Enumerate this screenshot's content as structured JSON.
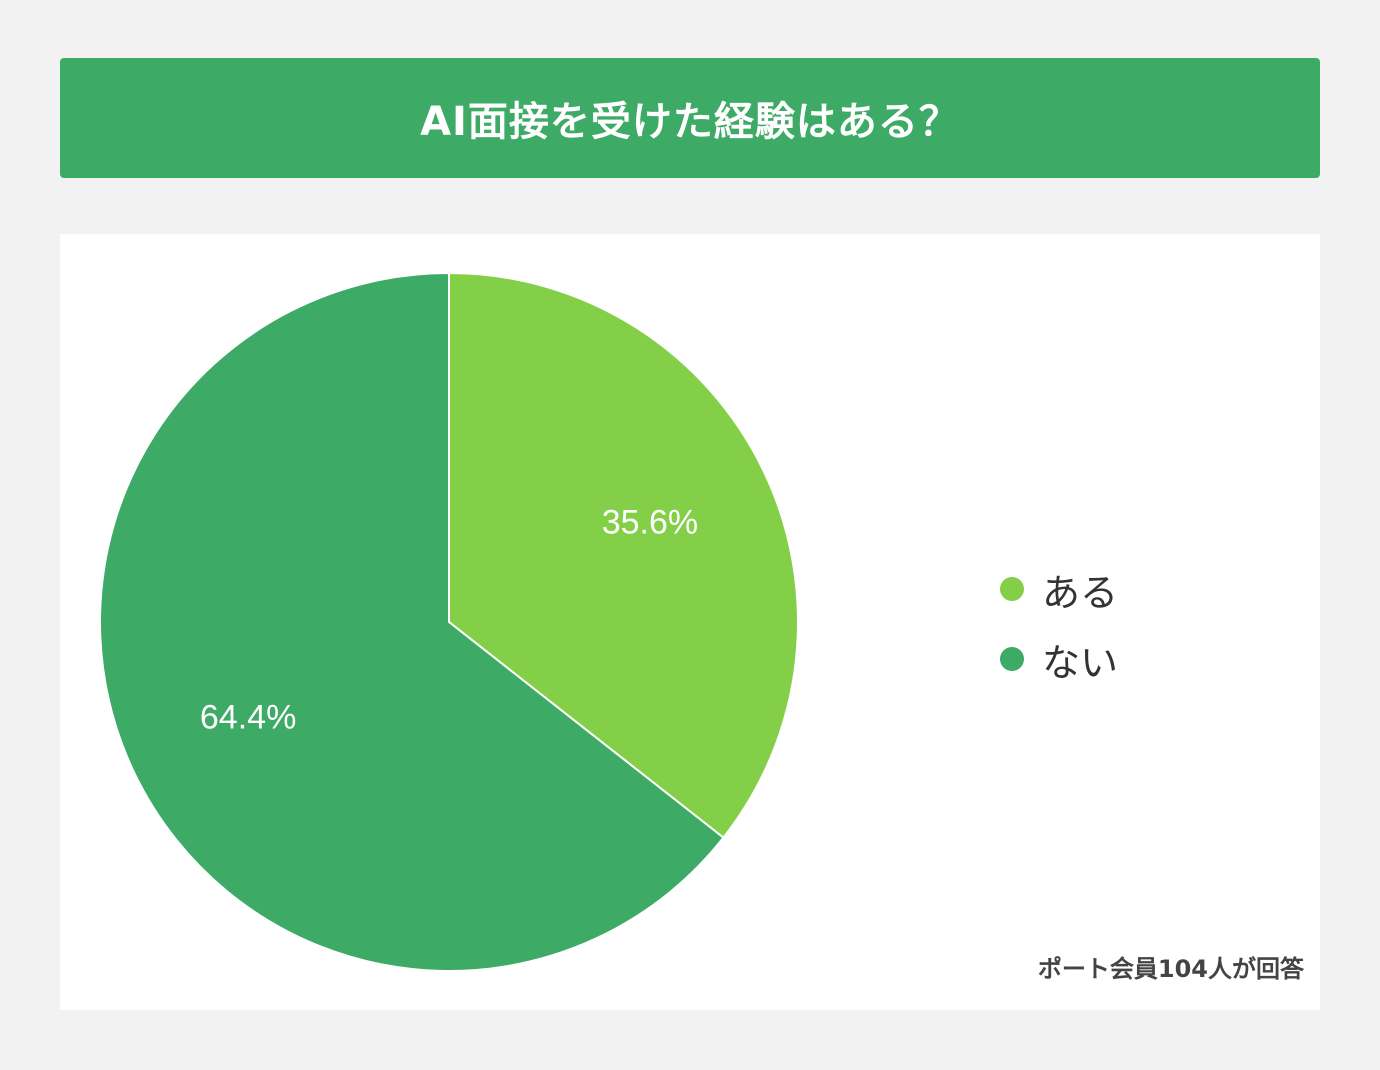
{
  "title": "AI面接を受けた経験はある？",
  "footnote": "ポート会員104人が回答",
  "chart_data": {
    "type": "pie",
    "categories": [
      "ある",
      "ない"
    ],
    "values": [
      35.6,
      64.4
    ],
    "labels": [
      "35.6%",
      "64.4%"
    ],
    "colors": [
      "#84cf48",
      "#3daa66"
    ],
    "legend_position": "right"
  }
}
